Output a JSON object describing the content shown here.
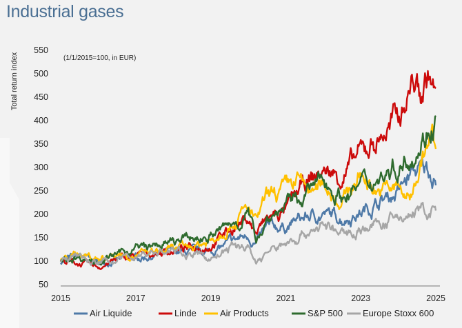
{
  "title": "Industrial gases",
  "chart_data": {
    "type": "line",
    "title": "Industrial gases",
    "ylabel": "Total return index",
    "note": "(1/1/2015=100, in EUR)",
    "xlabel": "",
    "xlim": [
      2015,
      2025
    ],
    "ylim": [
      50,
      550
    ],
    "xticks": [
      "2015",
      "2017",
      "2019",
      "2021",
      "2023",
      "2025"
    ],
    "yticks": [
      "50",
      "100",
      "150",
      "200",
      "250",
      "300",
      "350",
      "400",
      "450",
      "500",
      "550"
    ],
    "grid": false,
    "legend_position": "bottom",
    "series": [
      {
        "name": "Air Liquide",
        "color": "#4e79a7",
        "x": [
          2015.0,
          2015.5,
          2016.0,
          2016.5,
          2017.0,
          2017.5,
          2018.0,
          2018.5,
          2019.0,
          2019.5,
          2020.0,
          2020.2,
          2020.5,
          2021.0,
          2021.5,
          2022.0,
          2022.5,
          2023.0,
          2023.5,
          2024.0,
          2024.4,
          2024.8,
          2025.0
        ],
        "values": [
          100,
          110,
          97,
          102,
          106,
          113,
          118,
          118,
          120,
          138,
          155,
          138,
          168,
          175,
          192,
          200,
          192,
          205,
          228,
          248,
          290,
          296,
          282
        ]
      },
      {
        "name": "Linde",
        "color": "#cc0a0a",
        "x": [
          2015.0,
          2015.5,
          2016.0,
          2016.5,
          2017.0,
          2017.5,
          2018.0,
          2018.5,
          2019.0,
          2019.5,
          2020.0,
          2020.2,
          2020.5,
          2021.0,
          2021.5,
          2022.0,
          2022.5,
          2023.0,
          2023.5,
          2024.0,
          2024.4,
          2024.6,
          2024.8,
          2025.0
        ],
        "values": [
          100,
          95,
          88,
          103,
          110,
          118,
          123,
          128,
          136,
          168,
          192,
          158,
          190,
          208,
          262,
          292,
          282,
          328,
          365,
          405,
          490,
          450,
          500,
          455
        ]
      },
      {
        "name": "Air Products",
        "color": "#ffc000",
        "x": [
          2015.0,
          2015.5,
          2016.0,
          2016.5,
          2017.0,
          2017.5,
          2018.0,
          2018.5,
          2019.0,
          2019.5,
          2020.0,
          2020.2,
          2020.5,
          2021.0,
          2021.3,
          2021.8,
          2022.0,
          2022.5,
          2023.0,
          2023.5,
          2024.0,
          2024.3,
          2024.6,
          2024.9,
          2025.0
        ],
        "values": [
          100,
          118,
          105,
          118,
          113,
          118,
          123,
          133,
          143,
          182,
          210,
          182,
          232,
          250,
          272,
          242,
          268,
          228,
          285,
          250,
          255,
          230,
          312,
          362,
          322
        ]
      },
      {
        "name": "S&P 500",
        "color": "#2e6b2e",
        "x": [
          2015.0,
          2015.5,
          2016.0,
          2016.5,
          2017.0,
          2017.5,
          2018.0,
          2018.5,
          2019.0,
          2019.5,
          2020.0,
          2020.2,
          2020.5,
          2021.0,
          2021.5,
          2022.0,
          2022.5,
          2023.0,
          2023.5,
          2024.0,
          2024.5,
          2025.0
        ],
        "values": [
          100,
          110,
          100,
          113,
          128,
          130,
          140,
          148,
          155,
          175,
          200,
          148,
          192,
          218,
          242,
          272,
          238,
          262,
          282,
          305,
          348,
          410
        ]
      },
      {
        "name": "Europe Stoxx 600",
        "color": "#a6a6a6",
        "x": [
          2015.0,
          2015.5,
          2016.0,
          2016.5,
          2017.0,
          2017.5,
          2018.0,
          2018.5,
          2019.0,
          2019.5,
          2020.0,
          2020.2,
          2020.5,
          2021.0,
          2021.5,
          2022.0,
          2022.5,
          2023.0,
          2023.5,
          2024.0,
          2024.5,
          2025.0
        ],
        "values": [
          100,
          108,
          96,
          102,
          113,
          120,
          120,
          115,
          106,
          128,
          132,
          98,
          118,
          138,
          160,
          178,
          155,
          170,
          178,
          190,
          205,
          205
        ]
      }
    ]
  }
}
